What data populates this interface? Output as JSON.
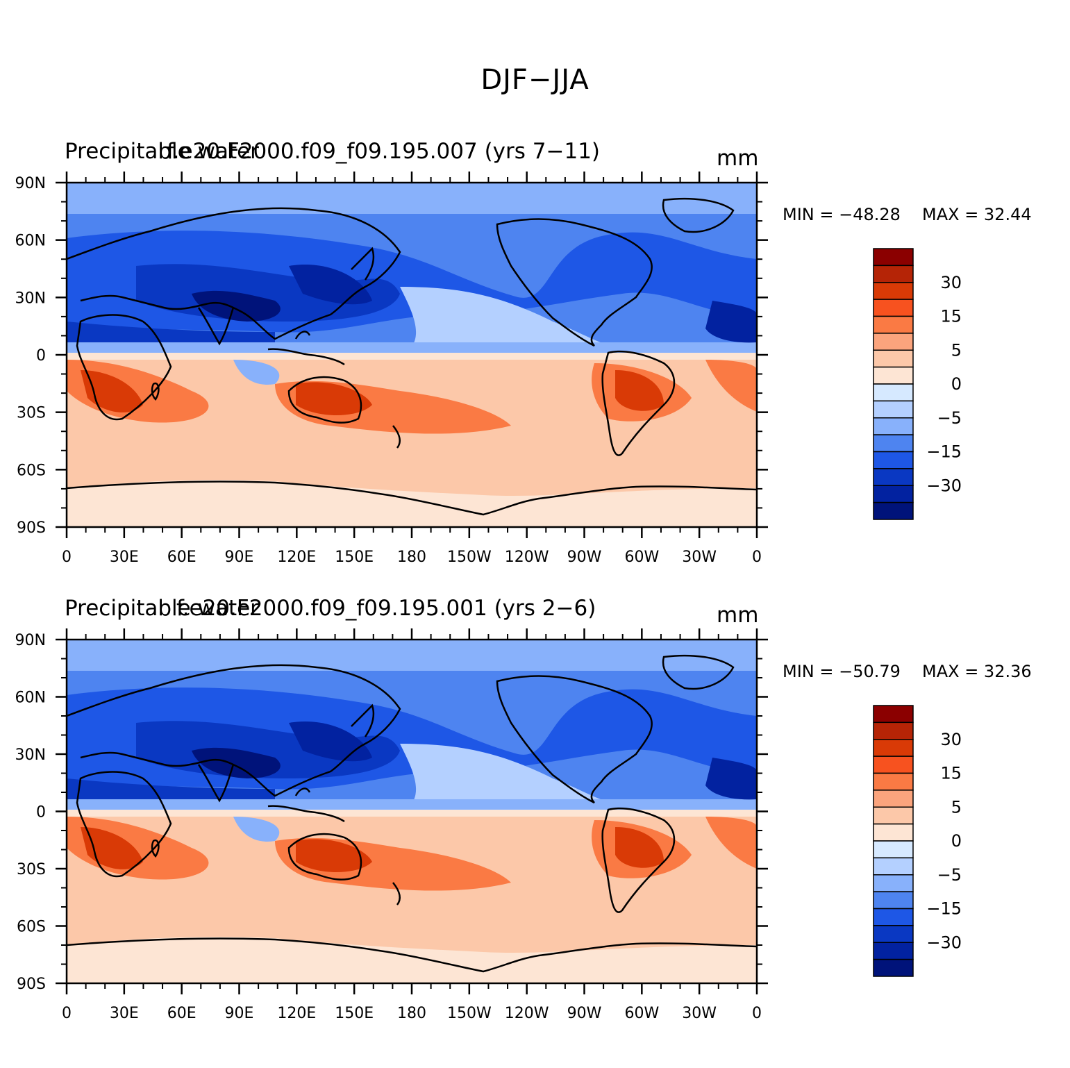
{
  "figure_title": "DJF−JJA",
  "panels": [
    {
      "left_title": "Precipitable water",
      "center_title": "f.e20.F2000.f09_f09.195.007 (yrs 7−11)",
      "units": "mm",
      "min_label": "MIN = −48.28",
      "max_label": "MAX =   32.44"
    },
    {
      "left_title": "Precipitable water",
      "center_title": "f.e20.F2000.f09_f09.195.001 (yrs 2−6)",
      "units": "mm",
      "min_label": "MIN = −50.79",
      "max_label": "MAX =   32.36"
    }
  ],
  "map": {
    "lat_ticks": [
      "90N",
      "60N",
      "30N",
      "0",
      "30S",
      "60S",
      "90S"
    ],
    "lon_ticks": [
      "0",
      "30E",
      "60E",
      "90E",
      "120E",
      "150E",
      "180",
      "150W",
      "120W",
      "90W",
      "60W",
      "30W",
      "0"
    ]
  },
  "colorbar": {
    "colors": [
      "#8b0000",
      "#b52406",
      "#d93a06",
      "#f7521f",
      "#fa7a44",
      "#fba47d",
      "#fcc8a9",
      "#fde5d4",
      "#d6e9ff",
      "#b4d0ff",
      "#88b1fb",
      "#4e84f0",
      "#1e57e6",
      "#0a38c2",
      "#0222a0",
      "#00137a"
    ],
    "labels": [
      "30",
      "15",
      "5",
      "0",
      "−5",
      "−15",
      "−30"
    ]
  },
  "legend_colors": {
    "strong_positive": "#d93a06",
    "weak_positive": "#fcc8a9",
    "weak_negative": "#b4d0ff",
    "strong_negative": "#0222a0",
    "coastline": "#000000"
  }
}
